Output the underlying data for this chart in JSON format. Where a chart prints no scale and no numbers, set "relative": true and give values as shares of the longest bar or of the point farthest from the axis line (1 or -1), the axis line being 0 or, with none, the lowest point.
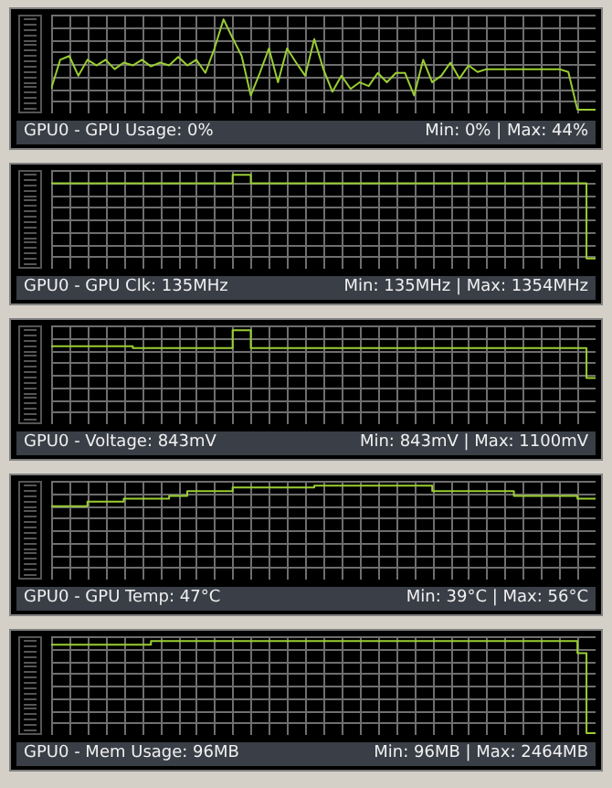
{
  "chart_data": [
    {
      "type": "line",
      "title": "GPU0 - GPU Usage: 0%",
      "annotations": [
        "Min: 0% | Max: 44%"
      ],
      "relative": true,
      "grid": true,
      "color": "#9acd32",
      "categories": [
        null,
        null,
        null,
        null,
        null,
        null,
        null,
        null,
        null,
        null,
        null,
        null,
        null,
        null,
        null,
        null,
        null,
        null,
        null,
        null,
        null,
        null,
        null,
        null,
        null,
        null,
        null,
        null,
        null,
        null,
        null,
        null,
        null,
        null,
        null,
        null,
        null,
        null,
        null,
        null,
        null,
        null,
        null,
        null,
        null,
        null,
        null,
        null,
        null,
        null,
        null,
        null,
        null,
        null,
        null,
        null,
        null,
        null,
        null,
        null,
        null
      ],
      "values": [
        0.26,
        0.57,
        0.61,
        0.4,
        0.57,
        0.51,
        0.57,
        0.47,
        0.54,
        0.51,
        0.57,
        0.5,
        0.54,
        0.51,
        0.6,
        0.51,
        0.57,
        0.43,
        0.69,
        1,
        0.8,
        0.61,
        0.19,
        0.43,
        0.69,
        0.33,
        0.69,
        0.54,
        0.4,
        0.79,
        0.47,
        0.23,
        0.4,
        0.26,
        0.33,
        0.29,
        0.43,
        0.33,
        0.43,
        0.43,
        0.19,
        0.57,
        0.33,
        0.4,
        0.54,
        0.37,
        0.51,
        0.44,
        0.47,
        0.47,
        0.47,
        0.47,
        0.47,
        0.47,
        0.47,
        0.47,
        0.47,
        0.44,
        0.04,
        0.04,
        0.04
      ]
    },
    {
      "type": "step",
      "title": "GPU0 - GPU Clk: 135MHz",
      "annotations": [
        "Min: 135MHz | Max: 1354MHz"
      ],
      "relative": true,
      "grid": true,
      "color": "#9acd32",
      "categories": [
        null,
        null,
        null,
        null,
        null,
        null,
        null,
        null,
        null,
        null,
        null,
        null,
        null,
        null,
        null,
        null,
        null,
        null,
        null,
        null,
        null,
        null,
        null,
        null,
        null,
        null,
        null,
        null,
        null,
        null,
        null,
        null,
        null,
        null,
        null,
        null,
        null,
        null,
        null,
        null,
        null,
        null,
        null,
        null,
        null,
        null,
        null,
        null,
        null,
        null,
        null,
        null,
        null,
        null,
        null,
        null,
        null,
        null,
        null,
        null,
        null
      ],
      "values": [
        0.91,
        0.91,
        0.91,
        0.91,
        0.91,
        0.91,
        0.91,
        0.91,
        0.91,
        0.91,
        0.91,
        0.91,
        0.91,
        0.91,
        0.91,
        0.91,
        0.91,
        0.91,
        0.91,
        0.91,
        1,
        1,
        0.91,
        0.91,
        0.91,
        0.91,
        0.91,
        0.91,
        0.91,
        0.91,
        0.91,
        0.91,
        0.91,
        0.91,
        0.91,
        0.91,
        0.91,
        0.91,
        0.91,
        0.91,
        0.91,
        0.91,
        0.91,
        0.91,
        0.91,
        0.91,
        0.91,
        0.91,
        0.91,
        0.91,
        0.91,
        0.91,
        0.91,
        0.91,
        0.91,
        0.91,
        0.91,
        0.91,
        0.91,
        0.11,
        0.11
      ]
    },
    {
      "type": "step",
      "title": "GPU0 - Voltage: 843mV",
      "annotations": [
        "Min: 843mV | Max: 1100mV"
      ],
      "relative": true,
      "grid": true,
      "color": "#9acd32",
      "categories": [
        null,
        null,
        null,
        null,
        null,
        null,
        null,
        null,
        null,
        null,
        null,
        null,
        null,
        null,
        null,
        null,
        null,
        null,
        null,
        null,
        null,
        null,
        null,
        null,
        null,
        null,
        null,
        null,
        null,
        null,
        null,
        null,
        null,
        null,
        null,
        null,
        null,
        null,
        null,
        null,
        null,
        null,
        null,
        null,
        null,
        null,
        null,
        null,
        null,
        null,
        null,
        null,
        null,
        null,
        null,
        null,
        null,
        null,
        null,
        null,
        null
      ],
      "values": [
        0.83,
        0.83,
        0.83,
        0.83,
        0.83,
        0.83,
        0.83,
        0.83,
        0.83,
        0.81,
        0.81,
        0.81,
        0.81,
        0.81,
        0.81,
        0.81,
        0.81,
        0.81,
        0.81,
        0.81,
        1,
        1,
        0.81,
        0.81,
        0.81,
        0.81,
        0.81,
        0.81,
        0.81,
        0.81,
        0.81,
        0.81,
        0.81,
        0.81,
        0.81,
        0.81,
        0.81,
        0.81,
        0.81,
        0.81,
        0.81,
        0.81,
        0.81,
        0.81,
        0.81,
        0.81,
        0.81,
        0.81,
        0.81,
        0.81,
        0.81,
        0.81,
        0.81,
        0.81,
        0.81,
        0.81,
        0.81,
        0.81,
        0.81,
        0.49,
        0.49
      ]
    },
    {
      "type": "step",
      "title": "GPU0 - GPU Temp: 47°C",
      "annotations": [
        "Min: 39°C | Max: 56°C"
      ],
      "relative": true,
      "grid": true,
      "color": "#9acd32",
      "categories": [
        null,
        null,
        null,
        null,
        null,
        null,
        null,
        null,
        null,
        null,
        null,
        null,
        null,
        null,
        null,
        null,
        null,
        null,
        null,
        null,
        null,
        null,
        null,
        null,
        null,
        null,
        null,
        null,
        null,
        null,
        null,
        null,
        null,
        null,
        null,
        null,
        null,
        null,
        null,
        null,
        null,
        null,
        null,
        null,
        null,
        null,
        null,
        null,
        null,
        null,
        null,
        null,
        null,
        null,
        null,
        null,
        null,
        null,
        null,
        null,
        null
      ],
      "values": [
        0.78,
        0.78,
        0.78,
        0.78,
        0.83,
        0.83,
        0.83,
        0.83,
        0.86,
        0.86,
        0.86,
        0.86,
        0.86,
        0.89,
        0.89,
        0.94,
        0.94,
        0.94,
        0.94,
        0.94,
        0.98,
        0.98,
        0.98,
        0.98,
        0.98,
        0.98,
        0.98,
        0.98,
        0.98,
        1,
        1,
        1,
        1,
        1,
        1,
        1,
        1,
        1,
        1,
        1,
        1,
        1,
        0.94,
        0.94,
        0.94,
        0.94,
        0.94,
        0.94,
        0.94,
        0.94,
        0.94,
        0.89,
        0.89,
        0.89,
        0.89,
        0.89,
        0.89,
        0.89,
        0.86,
        0.86,
        0.86
      ]
    },
    {
      "type": "step",
      "title": "GPU0 - Mem Usage: 96MB",
      "annotations": [
        "Min: 96MB | Max: 2464MB"
      ],
      "relative": true,
      "grid": true,
      "color": "#9acd32",
      "categories": [
        null,
        null,
        null,
        null,
        null,
        null,
        null,
        null,
        null,
        null,
        null,
        null,
        null,
        null,
        null,
        null,
        null,
        null,
        null,
        null,
        null,
        null,
        null,
        null,
        null,
        null,
        null,
        null,
        null,
        null,
        null,
        null,
        null,
        null,
        null,
        null,
        null,
        null,
        null,
        null,
        null,
        null,
        null,
        null,
        null,
        null,
        null,
        null,
        null,
        null,
        null,
        null,
        null,
        null,
        null,
        null,
        null,
        null,
        null,
        null,
        null
      ],
      "values": [
        0.96,
        0.96,
        0.96,
        0.96,
        0.96,
        0.96,
        0.96,
        0.96,
        0.96,
        0.96,
        0.96,
        1,
        1,
        1,
        1,
        1,
        1,
        1,
        1,
        1,
        1,
        1,
        1,
        1,
        1,
        1,
        1,
        1,
        1,
        1,
        1,
        1,
        1,
        1,
        1,
        1,
        1,
        1,
        1,
        1,
        1,
        1,
        1,
        1,
        1,
        1,
        1,
        1,
        1,
        1,
        1,
        1,
        1,
        1,
        1,
        1,
        1,
        1,
        0.87,
        0.02,
        0.02
      ]
    }
  ]
}
